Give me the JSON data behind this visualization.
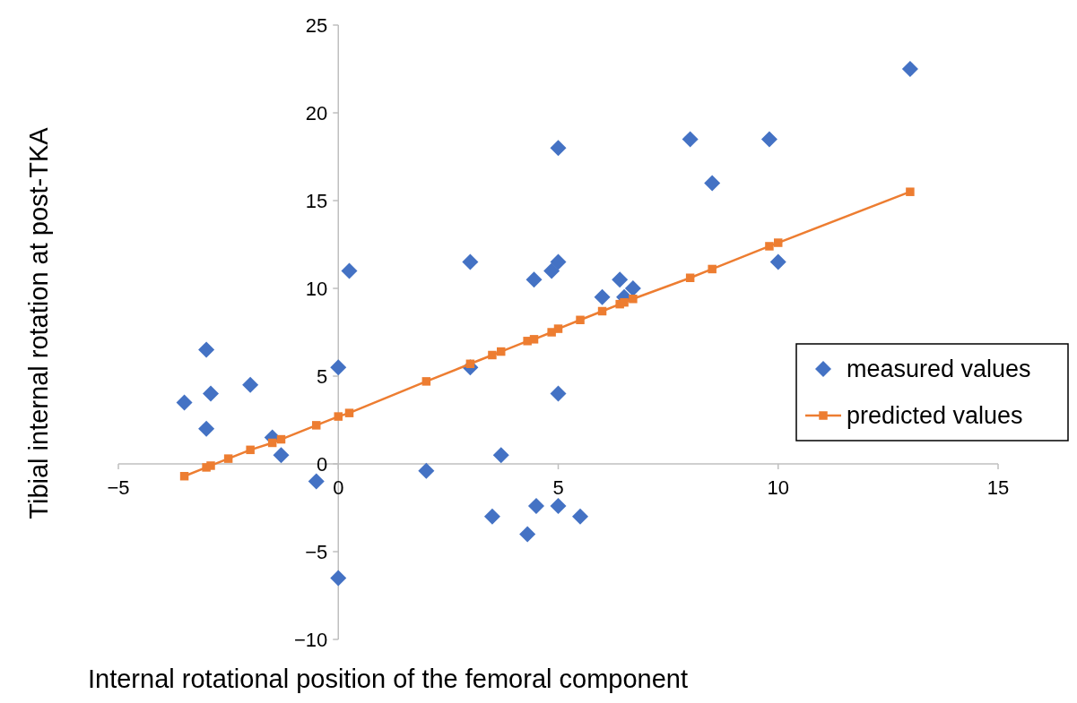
{
  "chart_data": {
    "type": "scatter",
    "xlabel": "Internal rotational position of the femoral component",
    "ylabel": "Tibial internal rotation at post-TKA",
    "xlim": [
      -5,
      15
    ],
    "xticks": [
      -5,
      0,
      5,
      10,
      15
    ],
    "ylim": [
      -10,
      25
    ],
    "yticks": [
      -10,
      -5,
      0,
      5,
      10,
      15,
      20,
      25
    ],
    "grid": false,
    "legend": "right",
    "series": [
      {
        "name": "measured values",
        "type": "scatter",
        "marker": "diamond",
        "color": "#4472c4",
        "x": [
          -3.5,
          -3,
          -2.9,
          -3,
          -2,
          -1.5,
          -1.3,
          -0.5,
          0,
          0,
          0.25,
          2,
          3,
          3,
          3.5,
          3.7,
          4.3,
          4.45,
          4.5,
          4.85,
          5,
          5,
          5,
          5,
          5.5,
          6,
          6.4,
          6.5,
          6.7,
          8,
          8.5,
          9.8,
          10,
          13
        ],
        "values": [
          3.5,
          6.5,
          4,
          2,
          4.5,
          1.5,
          0.5,
          -1,
          5.5,
          -6.5,
          11,
          -0.4,
          11.5,
          5.5,
          -3,
          0.5,
          -4,
          10.5,
          -2.4,
          11,
          11.5,
          18,
          4,
          -2.4,
          -3,
          9.5,
          10.5,
          9.5,
          10,
          18.5,
          16,
          18.5,
          11.5,
          22.5
        ]
      },
      {
        "name": "predicted values",
        "type": "line",
        "marker": "square",
        "line_style": "solid",
        "color": "#ed7d31",
        "x": [
          -3.5,
          -3,
          -2.9,
          -2.5,
          -2,
          -1.5,
          -1.3,
          -0.5,
          0,
          0.25,
          2,
          3,
          3.5,
          3.7,
          4.3,
          4.45,
          4.85,
          5,
          5.5,
          6,
          6.4,
          6.5,
          6.7,
          8,
          8.5,
          9.8,
          10,
          13
        ],
        "values": [
          -0.7,
          -0.2,
          -0.1,
          0.3,
          0.8,
          1.2,
          1.4,
          2.2,
          2.7,
          2.9,
          4.7,
          5.7,
          6.2,
          6.4,
          7.0,
          7.1,
          7.5,
          7.7,
          8.2,
          8.7,
          9.1,
          9.2,
          9.4,
          10.6,
          11.1,
          12.4,
          12.6,
          15.5
        ]
      }
    ]
  }
}
